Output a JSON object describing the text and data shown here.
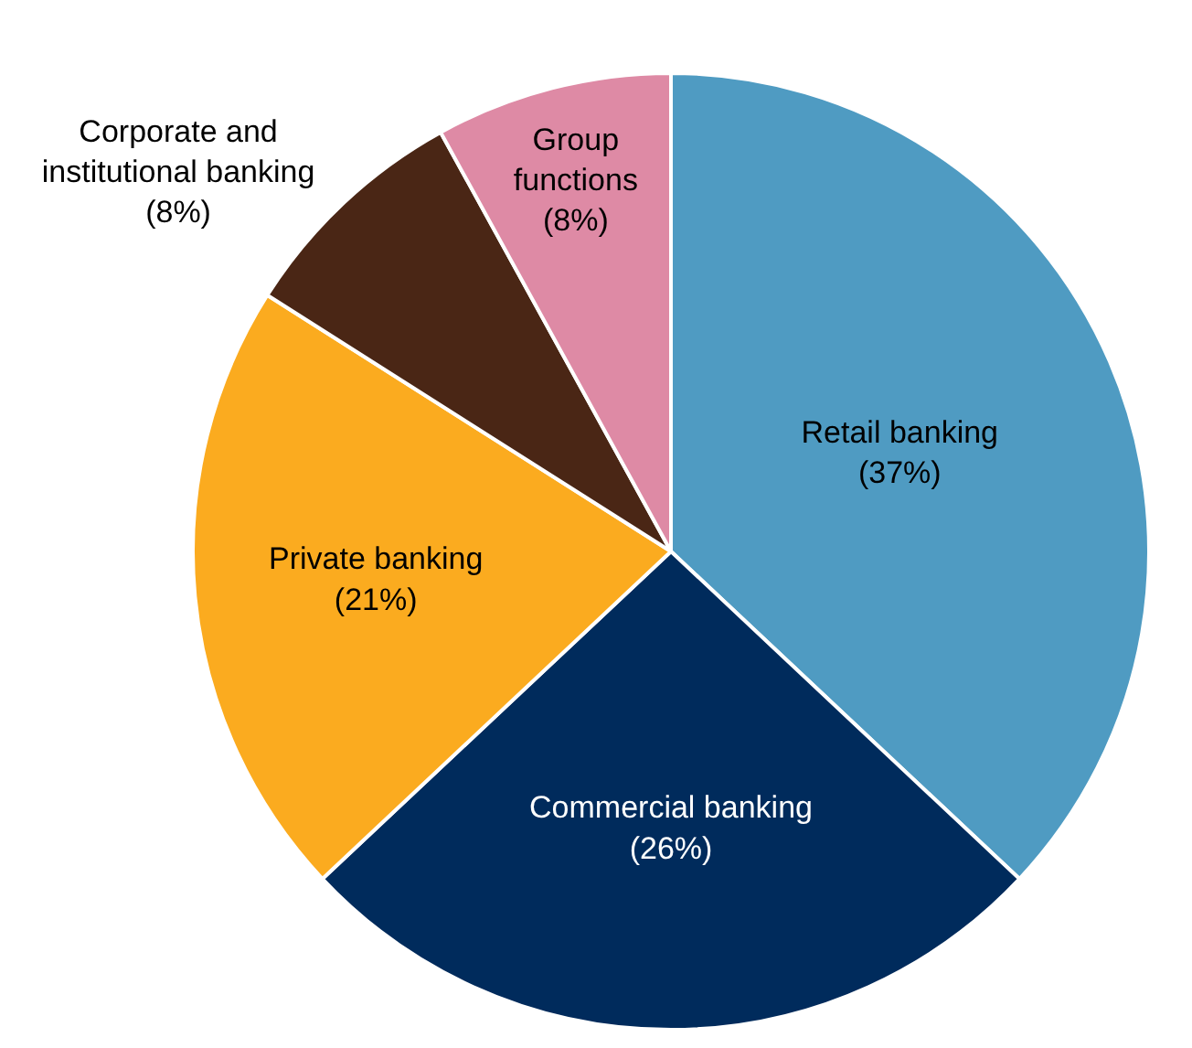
{
  "chart_data": {
    "type": "pie",
    "categories": [
      "Retail banking",
      "Commercial banking",
      "Private banking",
      "Corporate and institutional banking",
      "Group functions"
    ],
    "values": [
      37,
      26,
      21,
      8,
      8
    ],
    "value_labels": [
      "(37%)",
      "(26%)",
      "(21%)",
      "(8%)",
      "(8%)"
    ],
    "colors": [
      "#4f9bc2",
      "#002b5c",
      "#fbab1f",
      "#4a2615",
      "#de8aa5"
    ]
  }
}
